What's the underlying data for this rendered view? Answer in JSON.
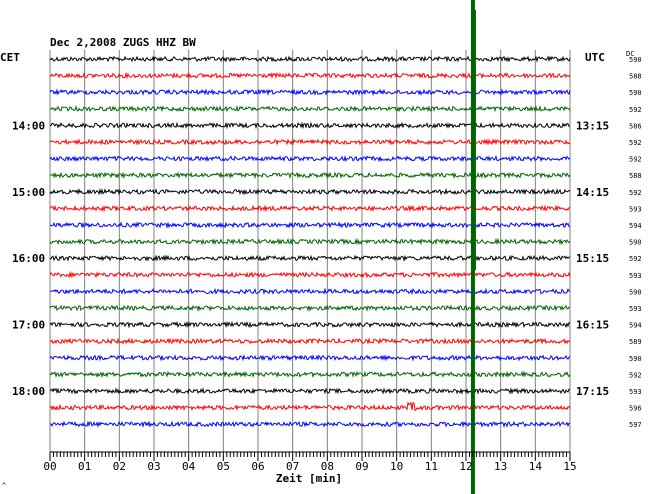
{
  "chart_data": {
    "type": "line",
    "title": "Dec 2,2008   ZUGS HHZ BW",
    "left_zone": "CET",
    "right_zone": "UTC",
    "dc_header": "DC",
    "xlabel": "Zeit [min]",
    "x_ticks": [
      "00",
      "01",
      "02",
      "03",
      "04",
      "05",
      "06",
      "07",
      "08",
      "09",
      "10",
      "11",
      "12",
      "13",
      "14",
      "15"
    ],
    "xlim": [
      0,
      15
    ],
    "rows": 23,
    "row_colors": [
      "#000000",
      "#ff0000",
      "#0000ff",
      "#006400"
    ],
    "left_hour_labels": [
      {
        "row": 4,
        "label": "14:00"
      },
      {
        "row": 8,
        "label": "15:00"
      },
      {
        "row": 12,
        "label": "16:00"
      },
      {
        "row": 16,
        "label": "17:00"
      },
      {
        "row": 20,
        "label": "18:00"
      }
    ],
    "right_hour_labels": [
      {
        "row": 4,
        "label": "13:15"
      },
      {
        "row": 8,
        "label": "14:15"
      },
      {
        "row": 12,
        "label": "15:15"
      },
      {
        "row": 16,
        "label": "16:15"
      },
      {
        "row": 20,
        "label": "17:15"
      }
    ],
    "dc_values": [
      "590",
      "588",
      "590",
      "592",
      "586",
      "592",
      "592",
      "588",
      "592",
      "593",
      "594",
      "590",
      "592",
      "593",
      "590",
      "593",
      "594",
      "589",
      "590",
      "592",
      "593",
      "596",
      "597"
    ],
    "event_marker": {
      "x_min": 12.2,
      "color": "#006400"
    },
    "grid": true,
    "corner_mark": "^"
  }
}
